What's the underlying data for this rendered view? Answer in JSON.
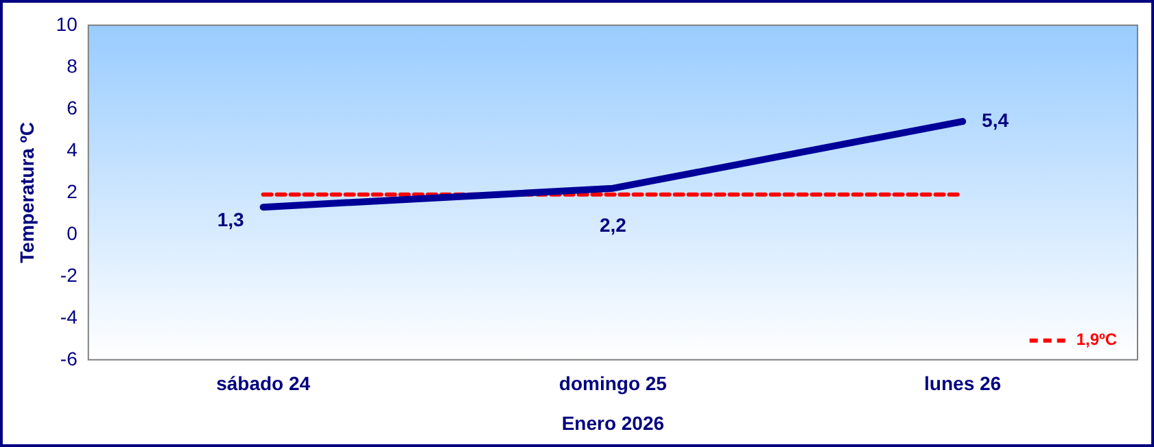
{
  "chart_data": {
    "type": "line",
    "xlabel": "Enero 2026",
    "ylabel": "Temperatura ºC",
    "categories": [
      "sábado 24",
      "domingo 25",
      "lunes 26"
    ],
    "series": [
      {
        "color": "#000099",
        "values": [
          1.3,
          2.2,
          5.4
        ],
        "value_labels": [
          "1,3",
          "2,2",
          "5,4"
        ],
        "line_style": "solid"
      },
      {
        "name": "1,9ºC",
        "color": "#ff0000",
        "values": [
          1.9,
          1.9,
          1.9
        ],
        "line_style": "dashed"
      }
    ],
    "ylim": [
      -6,
      10
    ],
    "yticks": [
      -6,
      -4,
      -2,
      0,
      2,
      4,
      6,
      8,
      10
    ],
    "grid": false,
    "legend": "bottom right",
    "marker": "none"
  }
}
